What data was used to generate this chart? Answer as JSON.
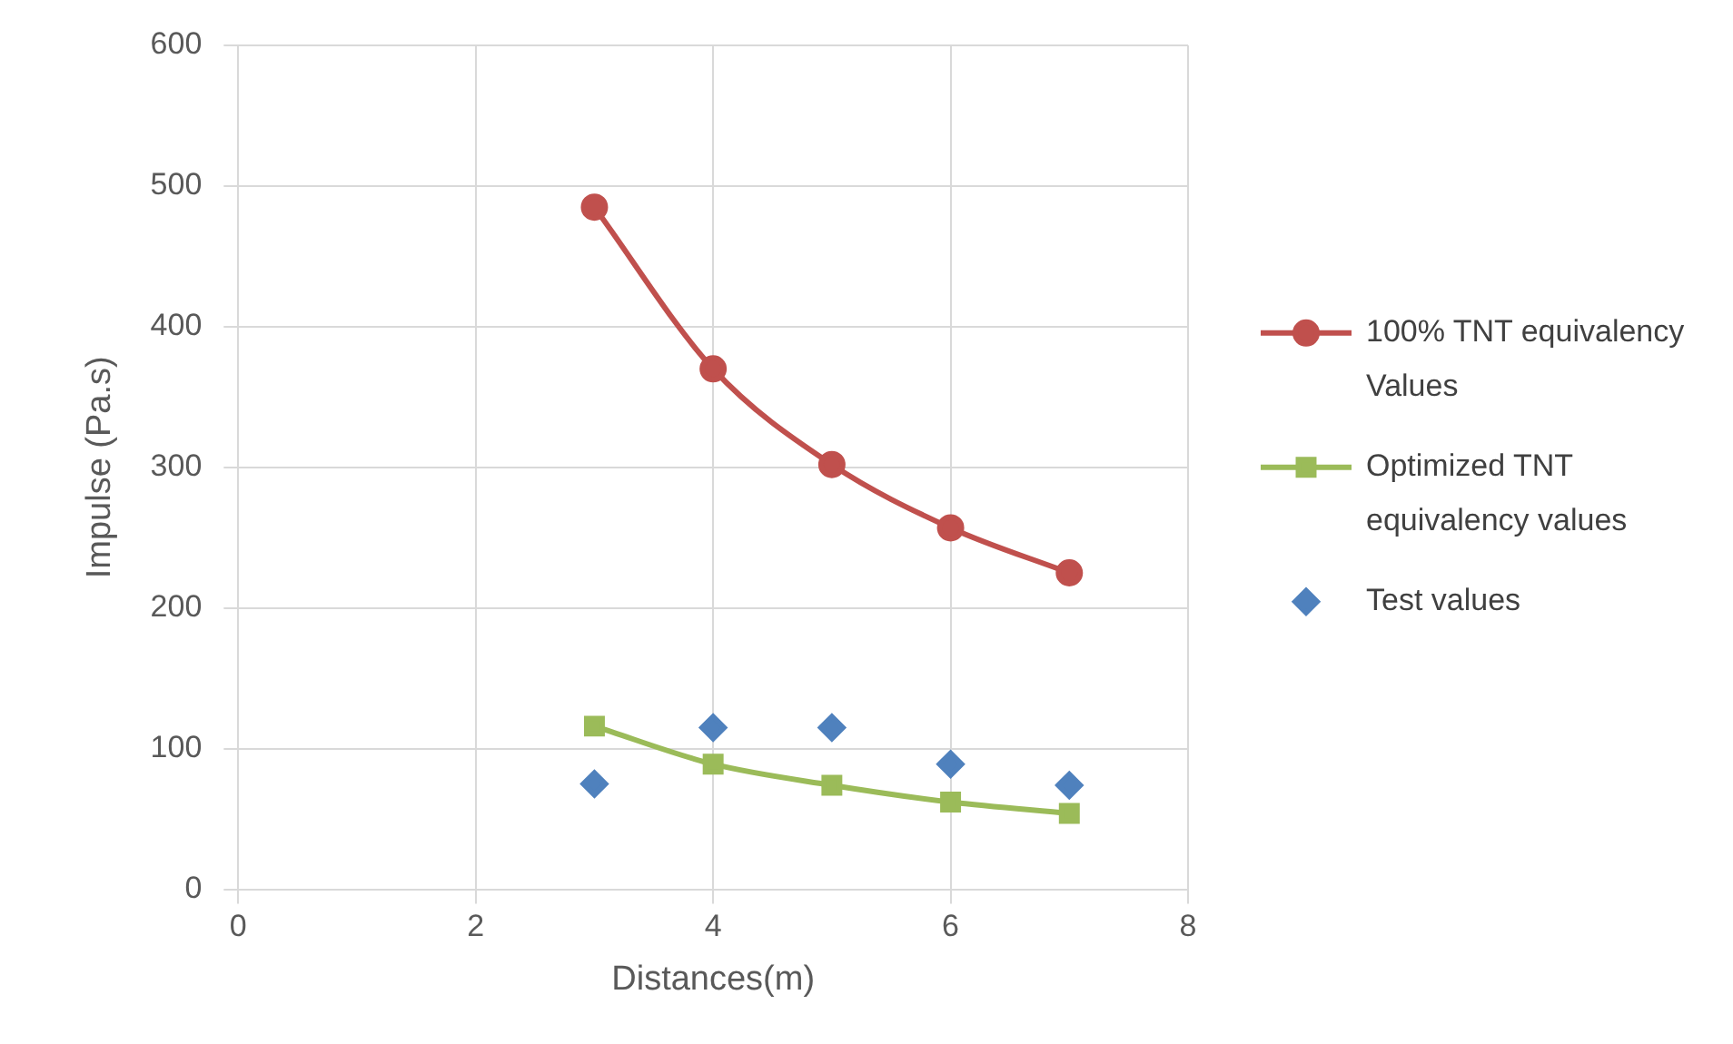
{
  "chart_data": {
    "type": "line",
    "xlabel": "Distances(m)",
    "ylabel": "Impulse (Pa.s)",
    "x": [
      3,
      4,
      5,
      6,
      7
    ],
    "series": [
      {
        "name": "100% TNT equivalency Values",
        "color": "#c0504d",
        "values": [
          485,
          370,
          302,
          257,
          225
        ],
        "marker": "circle"
      },
      {
        "name": "Optimized TNT equivalency values",
        "color": "#9bbb59",
        "values": [
          116,
          89,
          74,
          62,
          54
        ],
        "marker": "square"
      },
      {
        "name": "Test values",
        "type": "scatter",
        "color": "#4f81bd",
        "values": [
          75,
          115,
          115,
          89,
          74
        ],
        "marker": "diamond"
      }
    ],
    "xlim": [
      0,
      8
    ],
    "xticks": [
      0,
      2,
      4,
      6,
      8
    ],
    "ylim": [
      0,
      600
    ],
    "yticks": [
      0,
      100,
      200,
      300,
      400,
      500,
      600
    ],
    "grid": true,
    "legend": "right"
  }
}
